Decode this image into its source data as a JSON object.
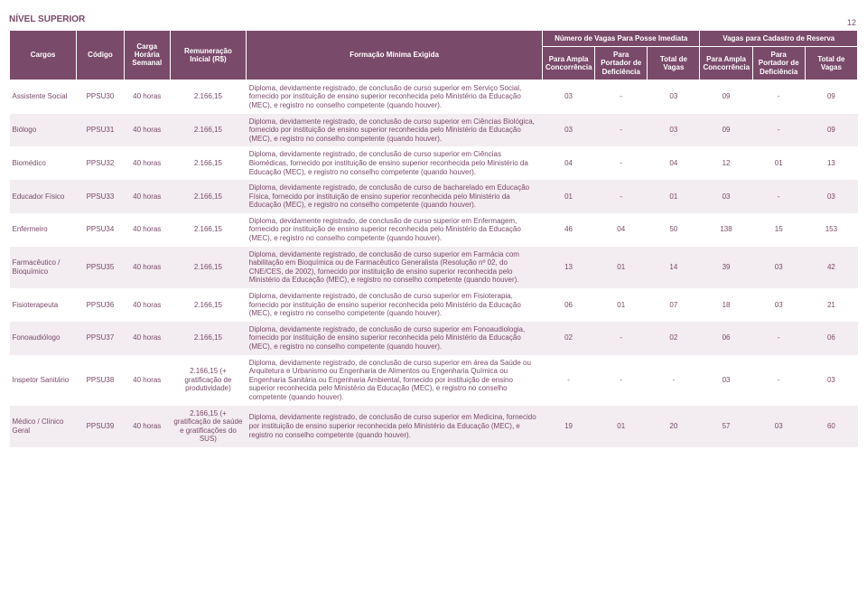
{
  "page_number": "12",
  "section_title": "NÍVEL SUPERIOR",
  "colors": {
    "header_bg": "#7a4a6a",
    "header_text": "#ffffff",
    "body_text": "#7a4a6a",
    "stripe_bg": "#f3ecf1",
    "page_bg": "#ffffff"
  },
  "headers": {
    "cargos": "Cargos",
    "codigo": "Código",
    "carga": "Carga Horária Semanal",
    "remun": "Remuneração Inicial (R$)",
    "formacao": "Formação Mínima Exigida",
    "grupo_imediata": "Número de Vagas Para Posse Imediata",
    "grupo_reserva": "Vagas para Cadastro de Reserva",
    "ampla": "Para Ampla Concorrência",
    "defic": "Para Portador de Deficiência",
    "total": "Total de Vagas"
  },
  "rows": [
    {
      "cargo": "Assistente Social",
      "codigo": "PPSU30",
      "carga": "40 horas",
      "remun": "2.166,15",
      "formacao": "Diploma, devidamente registrado, de conclusão de curso superior em Serviço Social, fornecido por instituição de ensino superior reconhecida pelo Ministério da Educação (MEC), e registro no conselho competente (quando houver).",
      "i_ampla": "03",
      "i_def": "-",
      "i_tot": "03",
      "r_ampla": "09",
      "r_def": "-",
      "r_tot": "09"
    },
    {
      "cargo": "Biólogo",
      "codigo": "PPSU31",
      "carga": "40 horas",
      "remun": "2.166,15",
      "formacao": "Diploma, devidamente registrado, de conclusão de curso superior em Ciências Biológica, fornecido por instituição de ensino superior reconhecida pelo Ministério da Educação (MEC), e registro no conselho competente (quando houver).",
      "i_ampla": "03",
      "i_def": "-",
      "i_tot": "03",
      "r_ampla": "09",
      "r_def": "-",
      "r_tot": "09"
    },
    {
      "cargo": "Biomédico",
      "codigo": "PPSU32",
      "carga": "40 horas",
      "remun": "2.166,15",
      "formacao": "Diploma, devidamente registrado, de conclusão de curso superior em Ciências Biomédicas, fornecido por instituição de ensino superior reconhecida pelo Ministério da Educação (MEC), e registro no conselho competente (quando houver).",
      "i_ampla": "04",
      "i_def": "-",
      "i_tot": "04",
      "r_ampla": "12",
      "r_def": "01",
      "r_tot": "13"
    },
    {
      "cargo": "Educador Físico",
      "codigo": "PPSU33",
      "carga": "40 horas",
      "remun": "2.166,15",
      "formacao": "Diploma, devidamente registrado, de conclusão de curso de bacharelado em Educação Física, fornecido por instituição de ensino superior reconhecida pelo Ministério da Educação (MEC), e registro no conselho competente (quando houver).",
      "i_ampla": "01",
      "i_def": "-",
      "i_tot": "01",
      "r_ampla": "03",
      "r_def": "-",
      "r_tot": "03"
    },
    {
      "cargo": "Enfermeiro",
      "codigo": "PPSU34",
      "carga": "40 horas",
      "remun": "2.166,15",
      "formacao": "Diploma, devidamente registrado, de conclusão de curso superior em Enfermagem, fornecido por instituição de ensino superior reconhecida pelo Ministério da Educação (MEC), e registro no conselho competente (quando houver).",
      "i_ampla": "46",
      "i_def": "04",
      "i_tot": "50",
      "r_ampla": "138",
      "r_def": "15",
      "r_tot": "153"
    },
    {
      "cargo": "Farmacêutico / Bioquímico",
      "codigo": "PPSU35",
      "carga": "40 horas",
      "remun": "2.166,15",
      "formacao": "Diploma, devidamente registrado, de conclusão de curso superior em Farmácia com habilitação em Bioquímica ou de Farmacêutico Generalista (Resolução nº 02, do CNE/CES, de 2002), fornecido por instituição de ensino superior reconhecida pelo Ministério da Educação (MEC), e registro no conselho competente (quando houver).",
      "i_ampla": "13",
      "i_def": "01",
      "i_tot": "14",
      "r_ampla": "39",
      "r_def": "03",
      "r_tot": "42"
    },
    {
      "cargo": "Fisioterapeuta",
      "codigo": "PPSU36",
      "carga": "40 horas",
      "remun": "2.166,15",
      "formacao": "Diploma, devidamente registrado, de conclusão de curso superior em Fisioterapia, fornecido por instituição de ensino superior reconhecida pelo Ministério da Educação (MEC), e registro no conselho competente (quando houver).",
      "i_ampla": "06",
      "i_def": "01",
      "i_tot": "07",
      "r_ampla": "18",
      "r_def": "03",
      "r_tot": "21"
    },
    {
      "cargo": "Fonoaudiólogo",
      "codigo": "PPSU37",
      "carga": "40 horas",
      "remun": "2.166,15",
      "formacao": "Diploma, devidamente registrado, de conclusão de curso superior em Fonoaudiologia, fornecido por instituição de ensino superior reconhecida pelo Ministério da Educação (MEC), e registro no conselho competente (quando houver).",
      "i_ampla": "02",
      "i_def": "-",
      "i_tot": "02",
      "r_ampla": "06",
      "r_def": "-",
      "r_tot": "06"
    },
    {
      "cargo": "Inspetor Sanitário",
      "codigo": "PPSU38",
      "carga": "40 horas",
      "remun": "2.166,15 (+ gratificação de produtividade)",
      "formacao": "Diploma, devidamente registrado, de conclusão de curso superior em área da Saúde ou Arquitetura e Urbanismo ou Engenharia de Alimentos ou Engenharia Química ou Engenharia Sanitária ou Engenharia Ambiental, fornecido por instituição de ensino superior reconhecida pelo Ministério da Educação (MEC), e registro no conselho competente (quando houver).",
      "i_ampla": "-",
      "i_def": "-",
      "i_tot": "-",
      "r_ampla": "03",
      "r_def": "-",
      "r_tot": "03"
    },
    {
      "cargo": "Médico / Clínico Geral",
      "codigo": "PPSU39",
      "carga": "40 horas",
      "remun": "2.166,15 (+ gratificação de saúde e gratificações do SUS)",
      "formacao": "Diploma, devidamente registrado, de conclusão de curso superior em Medicina, fornecido por instituição de ensino superior reconhecida pelo Ministério da Educação (MEC), e registro no conselho competente (quando houver).",
      "i_ampla": "19",
      "i_def": "01",
      "i_tot": "20",
      "r_ampla": "57",
      "r_def": "03",
      "r_tot": "60"
    }
  ]
}
